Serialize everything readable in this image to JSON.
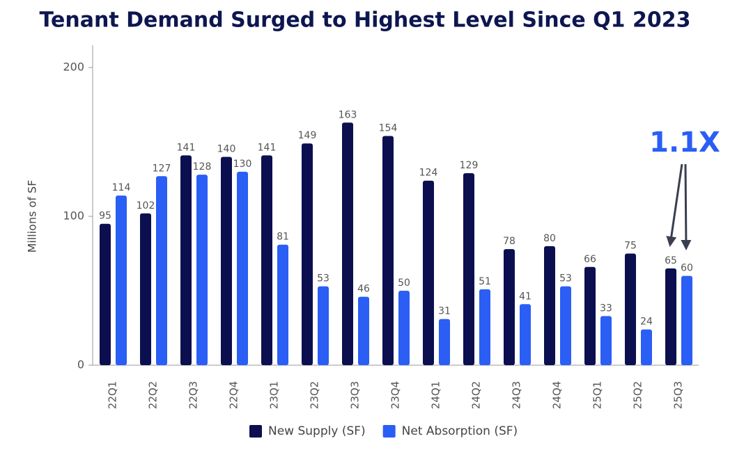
{
  "chart_data": {
    "type": "bar",
    "title": "Tenant Demand Surged to Highest Level Since Q1 2023",
    "y_label": "Millions of SF",
    "categories": [
      "22Q1",
      "22Q2",
      "22Q3",
      "22Q4",
      "23Q1",
      "23Q2",
      "23Q3",
      "23Q4",
      "24Q1",
      "24Q2",
      "24Q3",
      "24Q4",
      "25Q1",
      "25Q2",
      "25Q3"
    ],
    "series": [
      {
        "name": "New Supply (SF)",
        "color": "#0b0f4f",
        "values": [
          95,
          102,
          141,
          140,
          141,
          149,
          163,
          154,
          124,
          129,
          78,
          80,
          66,
          75,
          65
        ]
      },
      {
        "name": "Net Absorption (SF)",
        "color": "#2a5ef5",
        "values": [
          114,
          127,
          128,
          130,
          81,
          53,
          46,
          50,
          31,
          51,
          41,
          53,
          33,
          24,
          60
        ]
      }
    ],
    "ylim": [
      0,
      215
    ],
    "yticks": [
      0,
      100,
      200
    ],
    "grid": false,
    "legend": "bottom",
    "annotation": "1.1X"
  }
}
